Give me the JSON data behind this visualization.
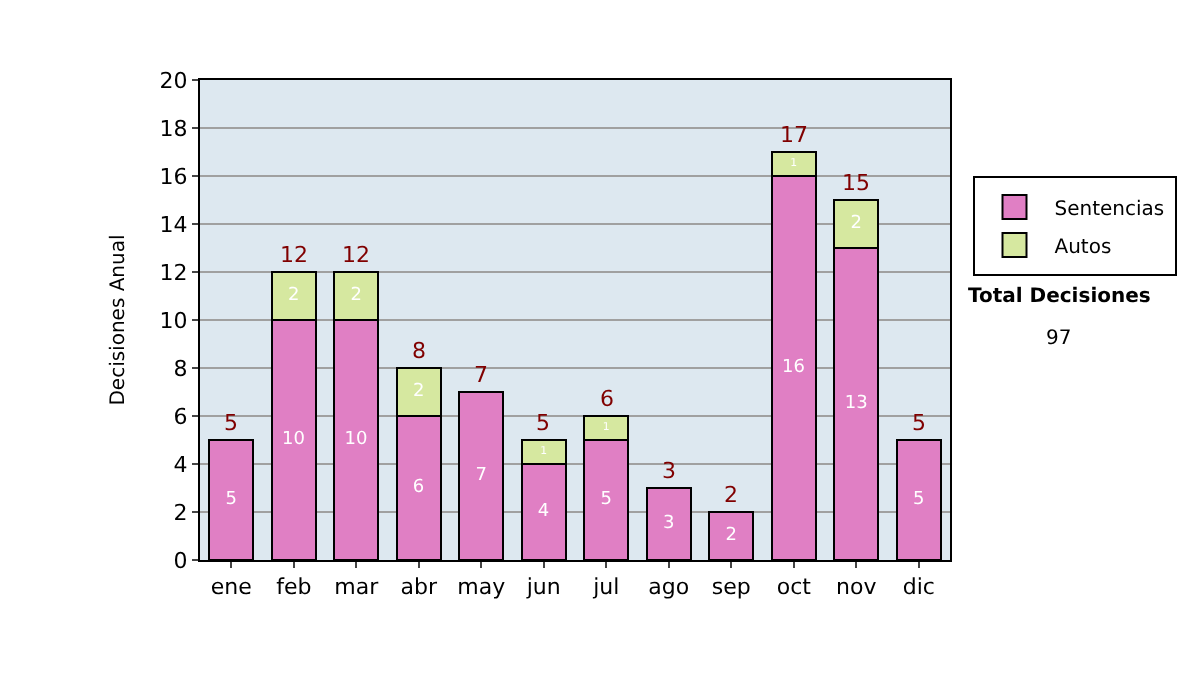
{
  "chart_data": {
    "type": "bar",
    "stacked": true,
    "ylabel": "Decisiones Anual",
    "categories": [
      "ene",
      "feb",
      "mar",
      "abr",
      "may",
      "jun",
      "jul",
      "ago",
      "sep",
      "oct",
      "nov",
      "dic"
    ],
    "series": [
      {
        "name": "Sentencias",
        "color": "#e07fc4",
        "values": [
          5,
          10,
          10,
          6,
          7,
          4,
          5,
          3,
          2,
          16,
          13,
          5
        ],
        "value_labels": [
          "5",
          "10",
          "10",
          "6",
          "7",
          "4",
          "5",
          "3",
          "2",
          "16",
          "13",
          "5"
        ]
      },
      {
        "name": "Autos",
        "color": "#d6e8a0",
        "values": [
          null,
          2,
          2,
          2,
          null,
          1,
          1,
          null,
          null,
          1,
          2,
          null
        ],
        "value_labels": [
          null,
          "2",
          "2",
          "2",
          null,
          "1",
          "1",
          null,
          null,
          "1",
          "2",
          null
        ]
      }
    ],
    "totals": [
      "5",
      "12",
      "12",
      "8",
      "7",
      "5",
      "6",
      "3",
      "2",
      "17",
      "15",
      "5"
    ],
    "ylim": [
      0,
      20
    ],
    "yticks": [
      0,
      2,
      4,
      6,
      8,
      10,
      12,
      14,
      16,
      18,
      20
    ],
    "grid": "y",
    "legend": "right",
    "annotations": [
      "Total Decisiones",
      "97"
    ]
  }
}
